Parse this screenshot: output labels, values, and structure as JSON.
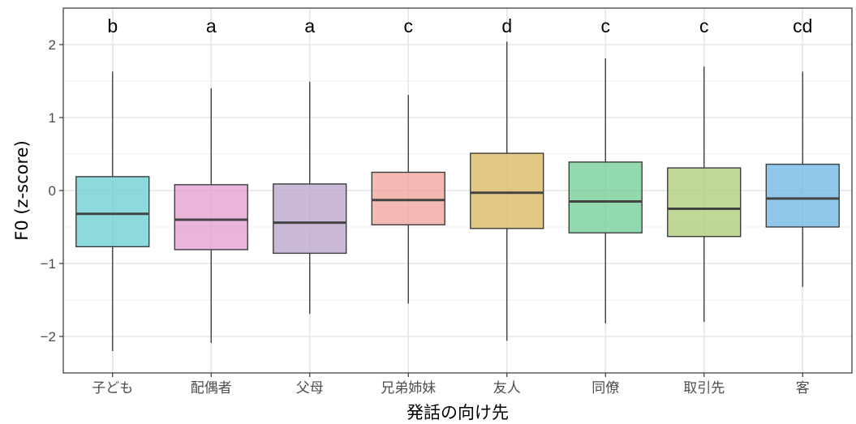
{
  "chart_data": {
    "type": "box",
    "xlabel": "発話の向け先",
    "ylabel": "F0 (z-score)",
    "ylim": [
      -2.5,
      2.5
    ],
    "yticks": [
      -2,
      -1,
      0,
      1,
      2
    ],
    "ytick_labels": [
      "−2",
      "−1",
      "0",
      "1",
      "2"
    ],
    "grid": true,
    "categories": [
      "子ども",
      "配偶者",
      "父母",
      "兄弟姉妹",
      "友人",
      "同僚",
      "取引先",
      "客"
    ],
    "letters": [
      "b",
      "a",
      "a",
      "c",
      "d",
      "c",
      "c",
      "cd"
    ],
    "colors": [
      "#66CDD3",
      "#E29CCB",
      "#B8A3CB",
      "#F0A29A",
      "#D9B55C",
      "#6ECC92",
      "#A9CB73",
      "#6BB5E4"
    ],
    "boxes": [
      {
        "whisker_low": -2.2,
        "q1": -0.77,
        "median": -0.32,
        "q3": 0.19,
        "whisker_high": 1.63
      },
      {
        "whisker_low": -2.09,
        "q1": -0.81,
        "median": -0.4,
        "q3": 0.08,
        "whisker_high": 1.4
      },
      {
        "whisker_low": -1.69,
        "q1": -0.86,
        "median": -0.44,
        "q3": 0.09,
        "whisker_high": 1.49
      },
      {
        "whisker_low": -1.55,
        "q1": -0.47,
        "median": -0.13,
        "q3": 0.25,
        "whisker_high": 1.31
      },
      {
        "whisker_low": -2.06,
        "q1": -0.52,
        "median": -0.03,
        "q3": 0.51,
        "whisker_high": 2.04
      },
      {
        "whisker_low": -1.82,
        "q1": -0.58,
        "median": -0.15,
        "q3": 0.39,
        "whisker_high": 1.81
      },
      {
        "whisker_low": -1.8,
        "q1": -0.63,
        "median": -0.25,
        "q3": 0.31,
        "whisker_high": 1.7
      },
      {
        "whisker_low": -1.32,
        "q1": -0.5,
        "median": -0.11,
        "q3": 0.36,
        "whisker_high": 1.63
      }
    ]
  }
}
